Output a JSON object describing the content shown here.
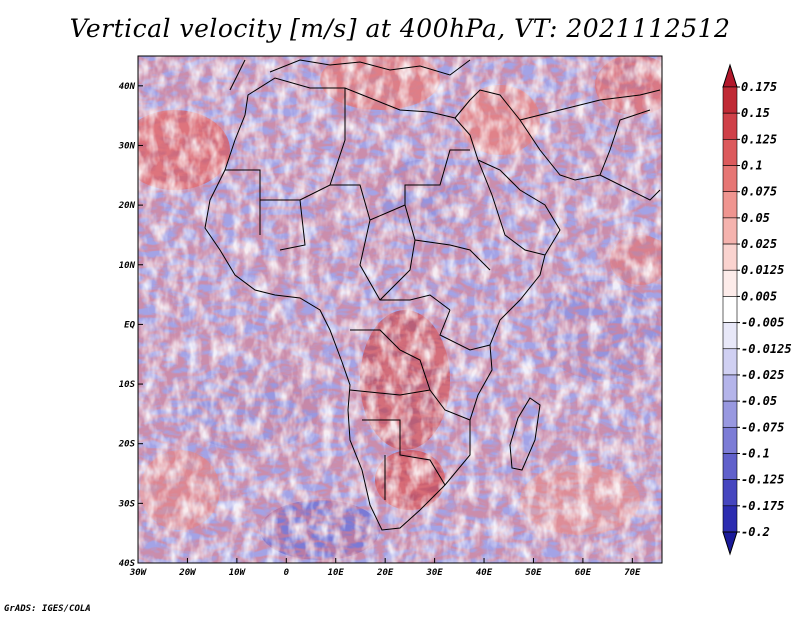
{
  "title": "Vertical velocity [m/s] at 400hPa, VT: 2021112512",
  "credit": "GrADS: IGES/COLA",
  "map": {
    "lat_range": [
      -40,
      45
    ],
    "lon_range": [
      -30,
      76
    ],
    "lat_ticks": [
      "40N",
      "30N",
      "20N",
      "10N",
      "EQ",
      "10S",
      "20S",
      "30S",
      "40S"
    ],
    "lon_ticks": [
      "30W",
      "20W",
      "10W",
      "0",
      "10E",
      "20E",
      "30E",
      "40E",
      "50E",
      "60E",
      "70E"
    ]
  },
  "colorbar": {
    "labels": [
      "0.175",
      "0.15",
      "0.125",
      "0.1",
      "0.075",
      "0.05",
      "0.025",
      "0.0125",
      "0.005",
      "-0.005",
      "-0.0125",
      "-0.025",
      "-0.05",
      "-0.075",
      "-0.1",
      "-0.125",
      "-0.175",
      "-0.2"
    ],
    "colors": [
      "#b2182b",
      "#c02a35",
      "#cf4048",
      "#dc5a5c",
      "#e67674",
      "#ef9590",
      "#f5b3ae",
      "#fad3cf",
      "#fdecea",
      "#ffffff",
      "#e8e8f8",
      "#d0d0f2",
      "#b4b4ea",
      "#9898e0",
      "#7c7cd6",
      "#6060cb",
      "#4646bf",
      "#2c2cb0",
      "#1a1a9a"
    ]
  }
}
